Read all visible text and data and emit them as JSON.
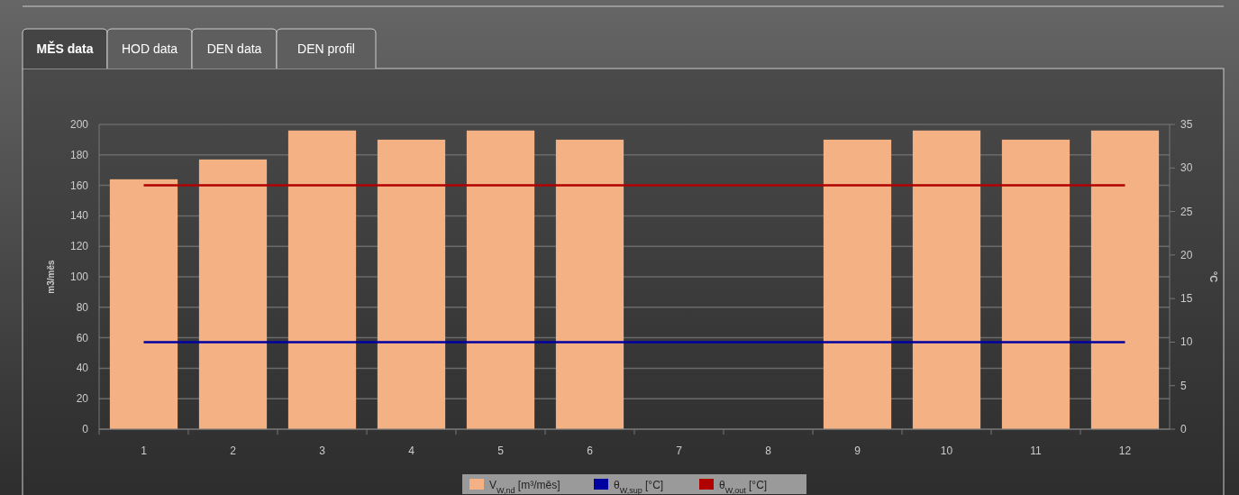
{
  "chart_data": {
    "type": "bar",
    "categories": [
      "1",
      "2",
      "3",
      "4",
      "5",
      "6",
      "7",
      "8",
      "9",
      "10",
      "11",
      "12"
    ],
    "series": [
      {
        "name": "V$_{W,nd}$ [m³/měs]",
        "color": "#f4b183",
        "values": [
          164,
          177,
          196,
          190,
          196,
          190,
          0,
          0,
          190,
          196,
          190,
          196
        ]
      },
      {
        "name": "θ$_{W,sup}$ [°C]",
        "type": "line",
        "axis": "y2",
        "color": "#0000a0",
        "values": [
          10,
          10,
          10,
          10,
          10,
          10,
          10,
          10,
          10,
          10,
          10,
          10
        ]
      },
      {
        "name": "θ$_{W,out}$ [°C]",
        "type": "line",
        "axis": "y2",
        "color": "#b00000",
        "values": [
          28,
          28,
          28,
          28,
          28,
          28,
          28,
          28,
          28,
          28,
          28,
          28
        ]
      }
    ],
    "ylabel": "m3/měs",
    "y2label": "°C",
    "ylim": [
      0,
      200
    ],
    "yticks": [
      0,
      20,
      40,
      60,
      80,
      100,
      120,
      140,
      160,
      180,
      200
    ],
    "y2lim": [
      0,
      35
    ],
    "y2ticks": [
      0,
      5,
      10,
      15,
      20,
      25,
      30,
      35
    ],
    "grid": "y",
    "legend": "bottom",
    "annotations": [
      "MĚS data",
      "HOD data",
      "DEN data",
      "DEN profil"
    ]
  }
}
